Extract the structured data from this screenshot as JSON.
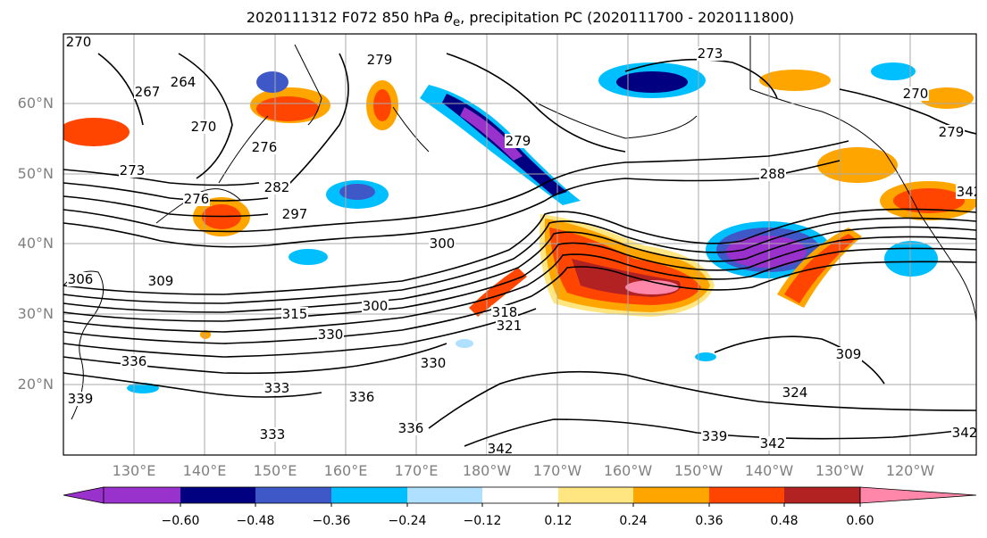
{
  "title_prefix": "2020111312 F072 850 hPa ",
  "title_symbol": "θ",
  "title_symbol_sub": "e",
  "title_suffix": ", precipitation PC (2020111700 - 2020111800)",
  "lat_labels": [
    "60°N",
    "50°N",
    "40°N",
    "30°N",
    "20°N"
  ],
  "lon_labels": [
    "130°E",
    "140°E",
    "150°E",
    "160°E",
    "170°E",
    "180°W",
    "170°W",
    "160°W",
    "150°W",
    "140°W",
    "130°W",
    "120°W"
  ],
  "contour_labels": [
    "270",
    "267",
    "264",
    "270",
    "276",
    "279",
    "273",
    "270",
    "279",
    "273",
    "276",
    "282",
    "288",
    "297",
    "300",
    "306",
    "309",
    "300",
    "315",
    "321",
    "318",
    "330",
    "336",
    "333",
    "330",
    "336",
    "339",
    "333",
    "336",
    "342",
    "342",
    "339",
    "342",
    "342",
    "324",
    "309",
    "279"
  ],
  "colorbar": {
    "colors": [
      "#9932cc",
      "#000080",
      "#3e58c8",
      "#00bfff",
      "#b0e0ff",
      "#ffffff",
      "#ffe680",
      "#ffa500",
      "#ff4500",
      "#b22222",
      "#ff88aa"
    ],
    "tick_labels": [
      "−0.60",
      "−0.48",
      "−0.36",
      "−0.24",
      "−0.12",
      "0.12",
      "0.24",
      "0.36",
      "0.48",
      "0.60"
    ]
  },
  "colors": {
    "positive_strong": "#b22222",
    "positive": "#ff4500",
    "orange": "#ffa500",
    "yellow": "#ffe680",
    "negative_light": "#b0e0ff",
    "negative": "#00bfff",
    "negative_mid": "#3e58c8",
    "negative_strong": "#000080",
    "purple": "#9932cc",
    "pink": "#ff88aa"
  }
}
